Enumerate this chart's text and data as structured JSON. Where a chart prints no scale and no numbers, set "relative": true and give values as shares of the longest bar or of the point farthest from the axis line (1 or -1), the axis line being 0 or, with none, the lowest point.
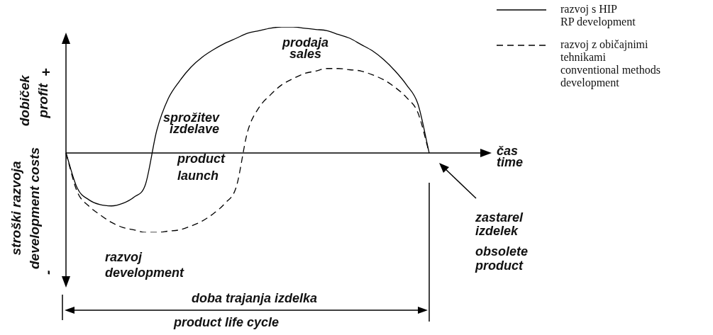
{
  "chart_data": {
    "type": "line",
    "relative": true,
    "legend": "top right",
    "xlabel": "čas\ntime",
    "ylabel": "dobiček\nprofit",
    "categories": [
      null,
      null,
      null,
      null,
      null,
      null,
      null,
      null,
      null,
      null,
      null,
      null,
      null,
      null,
      null,
      null,
      null,
      null,
      null,
      null,
      null,
      null,
      null,
      null,
      null,
      null,
      null,
      null,
      null,
      null,
      null,
      null,
      null
    ],
    "series": [
      {
        "name": "razvoj s HIP\nRP development",
        "color": "#000000",
        "line_style": "solid",
        "values": [
          0,
          -0.28,
          -0.37,
          -0.41,
          -0.42,
          -0.4,
          -0.35,
          -0.25,
          0.18,
          0.43,
          0.57,
          0.68,
          0.76,
          0.82,
          0.87,
          0.91,
          0.95,
          0.97,
          0.99,
          1,
          1,
          0.99,
          0.98,
          0.97,
          0.94,
          0.91,
          0.86,
          0.81,
          0.74,
          0.65,
          0.54,
          0.39,
          0
        ]
      },
      {
        "name": "razvoj z običajnimi\ntehnikami\nconventional methods\ndevelopment",
        "color": "#000000",
        "line_style": "dashed",
        "values": [
          0,
          -0.31,
          -0.42,
          -0.49,
          -0.55,
          -0.59,
          -0.61,
          -0.63,
          -0.63,
          -0.62,
          -0.61,
          -0.58,
          -0.54,
          -0.48,
          -0.4,
          -0.27,
          0.17,
          0.36,
          0.46,
          0.54,
          0.59,
          0.63,
          0.65,
          0.67,
          0.67,
          0.66,
          0.65,
          0.62,
          0.58,
          0.52,
          0.44,
          0.32,
          0
        ]
      }
    ],
    "annotations": [
      "+",
      "stroški razvoja\ndevelopment costs",
      "-",
      "prodaja\nsales",
      "sprožitev\nizdelave",
      "product\nlaunch",
      "razvoj\ndevelopment",
      "zastarel\nizdelek",
      "obsolete\nproduct",
      "doba trajanja izdelka",
      "product life cycle"
    ]
  }
}
